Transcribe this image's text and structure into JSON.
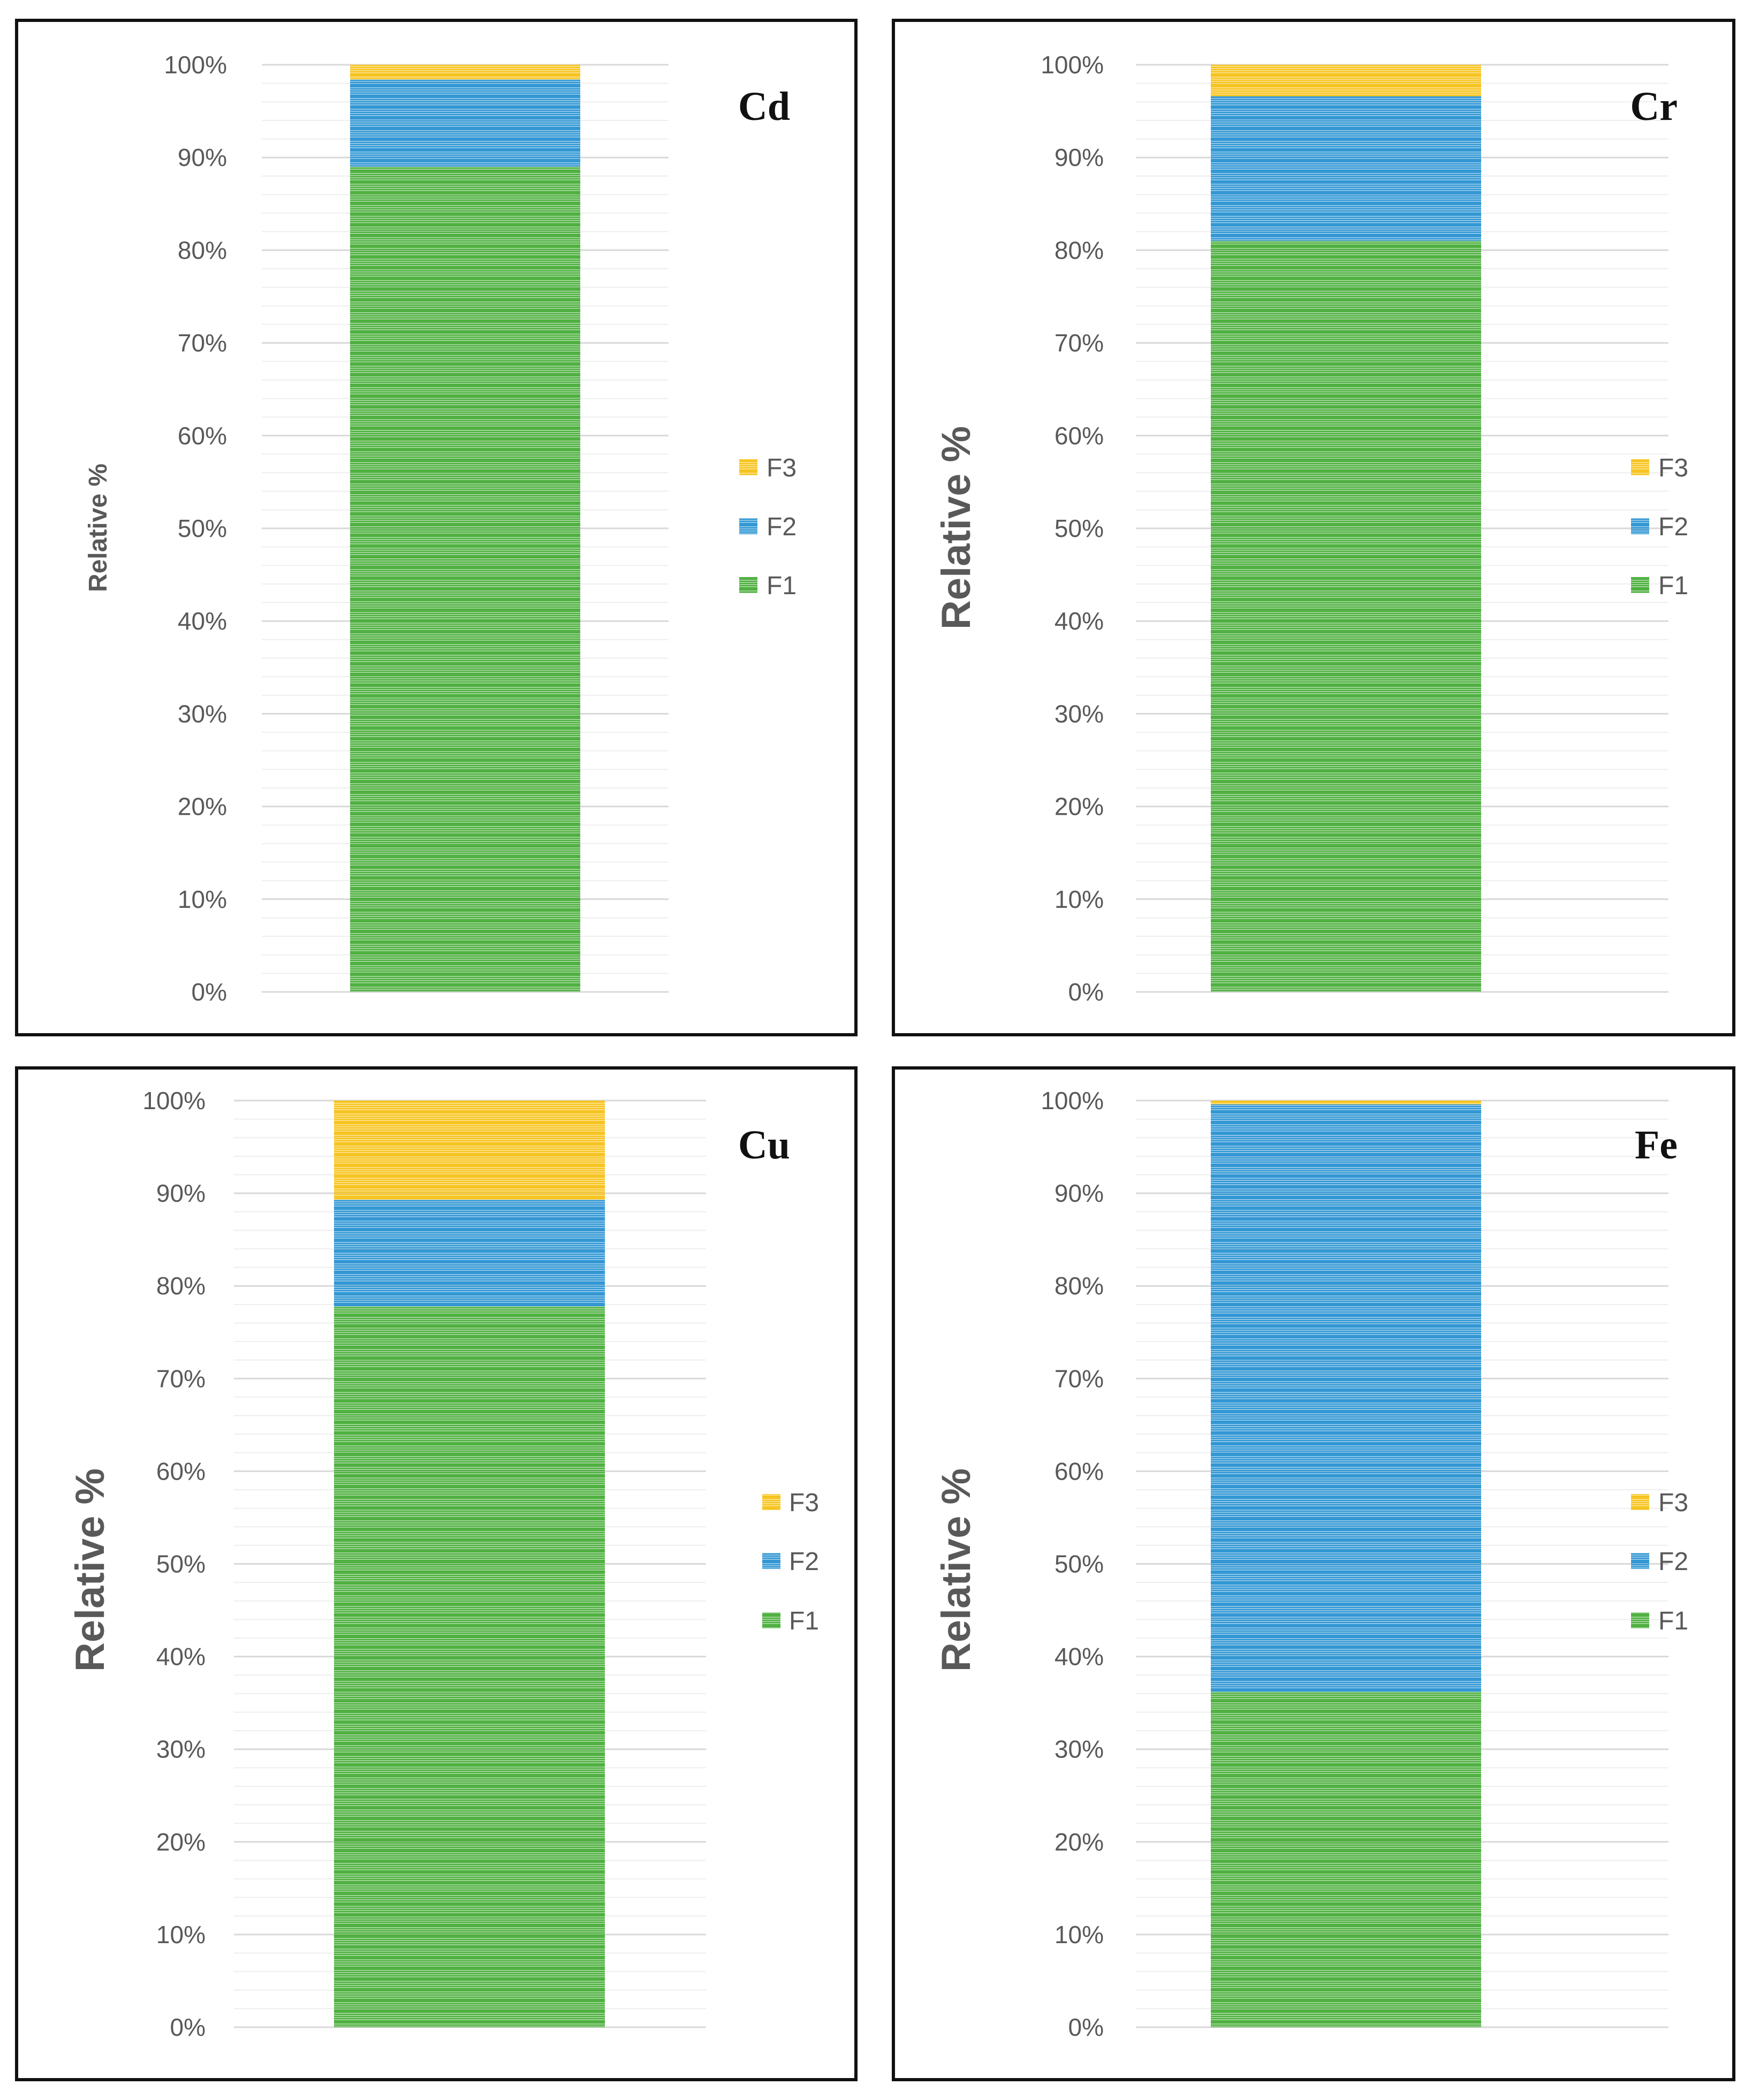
{
  "colors": {
    "F1": "#4caf3d",
    "F2": "#2e95d3",
    "F3": "#f7c31c",
    "grid": "#d9d9d9",
    "text": "#595959"
  },
  "chart_data": [
    {
      "type": "bar",
      "stacked": true,
      "element": "Cd",
      "ylabel": "Relative %",
      "yticks": [
        "0%",
        "10%",
        "20%",
        "30%",
        "40%",
        "50%",
        "60%",
        "70%",
        "80%",
        "90%",
        "100%"
      ],
      "ylim": [
        0,
        100
      ],
      "categories": [
        ""
      ],
      "legend": [
        "F3",
        "F2",
        "F1"
      ],
      "legend_position": "right",
      "series": [
        {
          "name": "F1",
          "values": [
            89
          ]
        },
        {
          "name": "F2",
          "values": [
            9.4
          ]
        },
        {
          "name": "F3",
          "values": [
            1.6
          ]
        }
      ]
    },
    {
      "type": "bar",
      "stacked": true,
      "element": "Cr",
      "ylabel": "Relative %",
      "yticks": [
        "0%",
        "10%",
        "20%",
        "30%",
        "40%",
        "50%",
        "60%",
        "70%",
        "80%",
        "90%",
        "100%"
      ],
      "ylim": [
        0,
        100
      ],
      "categories": [
        ""
      ],
      "legend": [
        "F3",
        "F2",
        "F1"
      ],
      "legend_position": "right",
      "series": [
        {
          "name": "F1",
          "values": [
            81
          ]
        },
        {
          "name": "F2",
          "values": [
            15.6
          ]
        },
        {
          "name": "F3",
          "values": [
            3.4
          ]
        }
      ]
    },
    {
      "type": "bar",
      "stacked": true,
      "element": "Cu",
      "ylabel": "Relative %",
      "yticks": [
        "0%",
        "10%",
        "20%",
        "30%",
        "40%",
        "50%",
        "60%",
        "70%",
        "80%",
        "90%",
        "100%"
      ],
      "ylim": [
        0,
        100
      ],
      "categories": [
        ""
      ],
      "legend": [
        "F3",
        "F2",
        "F1"
      ],
      "legend_position": "right",
      "series": [
        {
          "name": "F1",
          "values": [
            77.8
          ]
        },
        {
          "name": "F2",
          "values": [
            11.5
          ]
        },
        {
          "name": "F3",
          "values": [
            10.7
          ]
        }
      ]
    },
    {
      "type": "bar",
      "stacked": true,
      "element": "Fe",
      "ylabel": "Relative %",
      "yticks": [
        "0%",
        "10%",
        "20%",
        "30%",
        "40%",
        "50%",
        "60%",
        "70%",
        "80%",
        "90%",
        "100%"
      ],
      "ylim": [
        0,
        100
      ],
      "categories": [
        ""
      ],
      "legend": [
        "F3",
        "F2",
        "F1"
      ],
      "legend_position": "right",
      "series": [
        {
          "name": "F1",
          "values": [
            36.2
          ]
        },
        {
          "name": "F2",
          "values": [
            63.4
          ]
        },
        {
          "name": "F3",
          "values": [
            0.4
          ]
        }
      ]
    }
  ]
}
